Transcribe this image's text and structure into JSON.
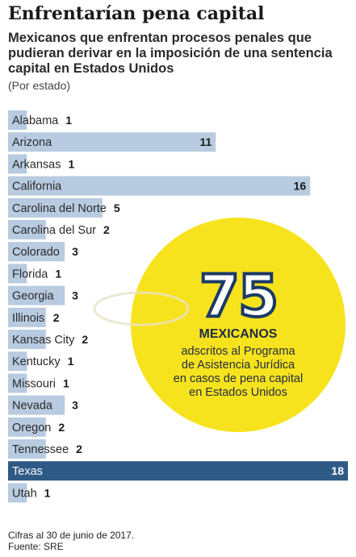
{
  "header": {
    "title": "Enfrentarían pena capital",
    "subtitle": "Mexicanos que enfrentan procesos penales que pudieran derivar en la imposición de una sentencia capital en Estados Unidos",
    "unit": "(Por estado)"
  },
  "chart_data": {
    "type": "bar",
    "orientation": "horizontal",
    "categories": [
      "Alabama",
      "Arizona",
      "Arkansas",
      "California",
      "Carolina del Norte",
      "Carolina del Sur",
      "Colorado",
      "Florida",
      "Georgia",
      "Illinois",
      "Kansas City",
      "Kentucky",
      "Missouri",
      "Nevada",
      "Oregon",
      "Tennessee",
      "Texas",
      "Utah"
    ],
    "values": [
      1,
      11,
      1,
      16,
      5,
      2,
      3,
      1,
      3,
      2,
      2,
      1,
      1,
      3,
      2,
      2,
      18,
      1
    ],
    "xlim": [
      0,
      18
    ],
    "grid": false,
    "highlight": "Texas",
    "colors": {
      "bar": "#b8cbe0",
      "highlight": "#2f5a86"
    }
  },
  "callout": {
    "number": "75",
    "headline": "MEXICANOS",
    "lines": [
      "adscritos al Programa",
      "de Asistencia Jurídica",
      "en casos de pena capital",
      "en Estados Unidos"
    ],
    "circle_color": "#f7e31d"
  },
  "footer": {
    "note": "Cifras al 30 de junio de 2017.",
    "source": "Fuente: SRE"
  }
}
